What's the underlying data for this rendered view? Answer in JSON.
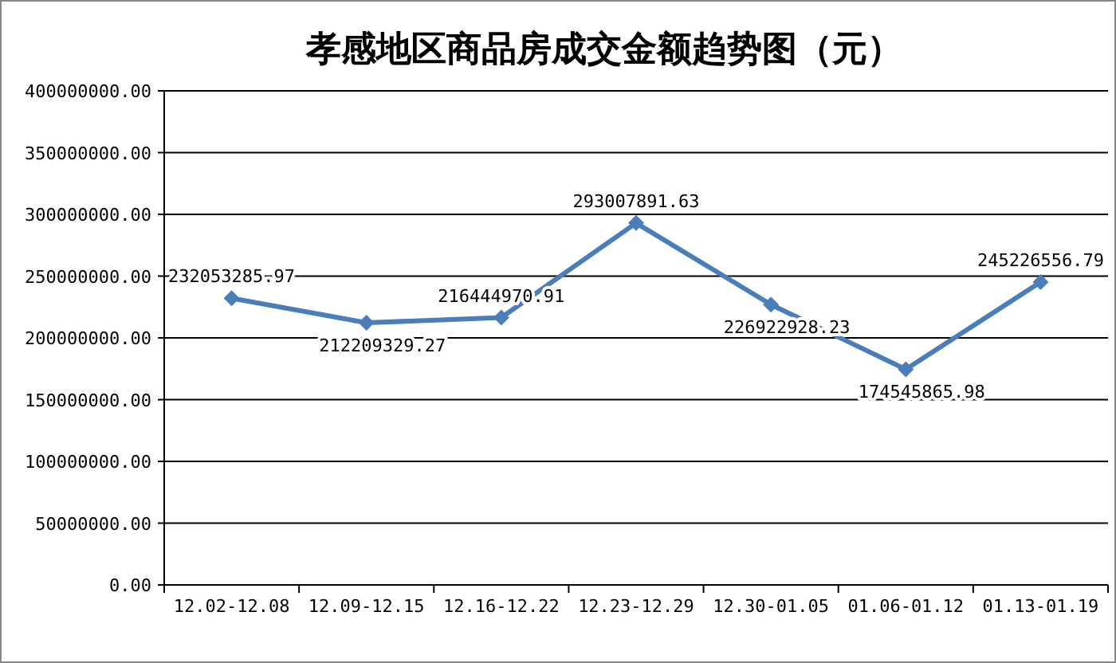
{
  "chart_data": {
    "type": "line",
    "title": "孝感地区商品房成交金额趋势图（元）",
    "categories": [
      "12.02-12.08",
      "12.09-12.15",
      "12.16-12.22",
      "12.23-12.29",
      "12.30-01.05",
      "01.06-01.12",
      "01.13-01.19"
    ],
    "series": [
      {
        "color": "#4a7ebb",
        "values": [
          232053285.97,
          212209329.27,
          216444970.91,
          293007891.63,
          226922928.23,
          174545865.98,
          245226556.79
        ]
      }
    ],
    "ylim": [
      0,
      400000000
    ],
    "yticks": [
      {
        "value": 0,
        "label": "0.00"
      },
      {
        "value": 50000000,
        "label": "50000000.00"
      },
      {
        "value": 100000000,
        "label": "100000000.00"
      },
      {
        "value": 150000000,
        "label": "150000000.00"
      },
      {
        "value": 200000000,
        "label": "200000000.00"
      },
      {
        "value": 250000000,
        "label": "250000000.00"
      },
      {
        "value": 300000000,
        "label": "300000000.00"
      },
      {
        "value": 350000000,
        "label": "350000000.00"
      },
      {
        "value": 400000000,
        "label": "400000000.00"
      }
    ],
    "grid": "y",
    "marker": "diamond",
    "line_style": "solid",
    "data_labels": true
  }
}
